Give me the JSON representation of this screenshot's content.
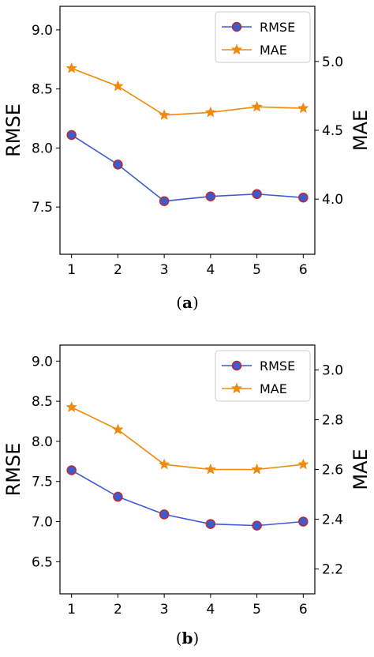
{
  "chart_data": [
    {
      "type": "line",
      "caption_letter": "a",
      "x": [
        1,
        2,
        3,
        4,
        5,
        6
      ],
      "xticks": [
        1,
        2,
        3,
        4,
        5,
        6
      ],
      "xlim": [
        0.75,
        6.25
      ],
      "ylabel_left": "RMSE",
      "ylabel_right": "MAE",
      "ylim_left": [
        7.1,
        9.2
      ],
      "ylim_right": [
        3.6,
        5.4
      ],
      "yticks_left": [
        "7.5",
        "8.0",
        "8.5",
        "9.0"
      ],
      "yticks_right": [
        "4.0",
        "4.5",
        "5.0"
      ],
      "legend": "top-right",
      "grid": false,
      "series": [
        {
          "name": "RMSE",
          "axis": "left",
          "color": "#3b5bd1",
          "marker": "circle",
          "marker_edge": "#c0282b",
          "values": [
            8.11,
            7.86,
            7.55,
            7.59,
            7.61,
            7.58
          ]
        },
        {
          "name": "MAE",
          "axis": "right",
          "color": "#f08a0c",
          "marker": "star",
          "values": [
            4.95,
            4.82,
            4.61,
            4.63,
            4.67,
            4.66
          ]
        }
      ]
    },
    {
      "type": "line",
      "caption_letter": "b",
      "x": [
        1,
        2,
        3,
        4,
        5,
        6
      ],
      "xticks": [
        1,
        2,
        3,
        4,
        5,
        6
      ],
      "xlim": [
        0.75,
        6.25
      ],
      "ylabel_left": "RMSE",
      "ylabel_right": "MAE",
      "ylim_left": [
        6.1,
        9.2
      ],
      "ylim_right": [
        2.1,
        3.1
      ],
      "yticks_left": [
        "6.5",
        "7.0",
        "7.5",
        "8.0",
        "8.5",
        "9.0"
      ],
      "yticks_right": [
        "2.2",
        "2.4",
        "2.6",
        "2.8",
        "3.0"
      ],
      "legend": "top-right",
      "grid": false,
      "series": [
        {
          "name": "RMSE",
          "axis": "left",
          "color": "#3b5bd1",
          "marker": "circle",
          "marker_edge": "#c0282b",
          "values": [
            7.64,
            7.31,
            7.09,
            6.97,
            6.95,
            7.0
          ]
        },
        {
          "name": "MAE",
          "axis": "right",
          "color": "#f08a0c",
          "marker": "star",
          "values": [
            2.85,
            2.76,
            2.62,
            2.6,
            2.6,
            2.62
          ]
        }
      ]
    }
  ]
}
